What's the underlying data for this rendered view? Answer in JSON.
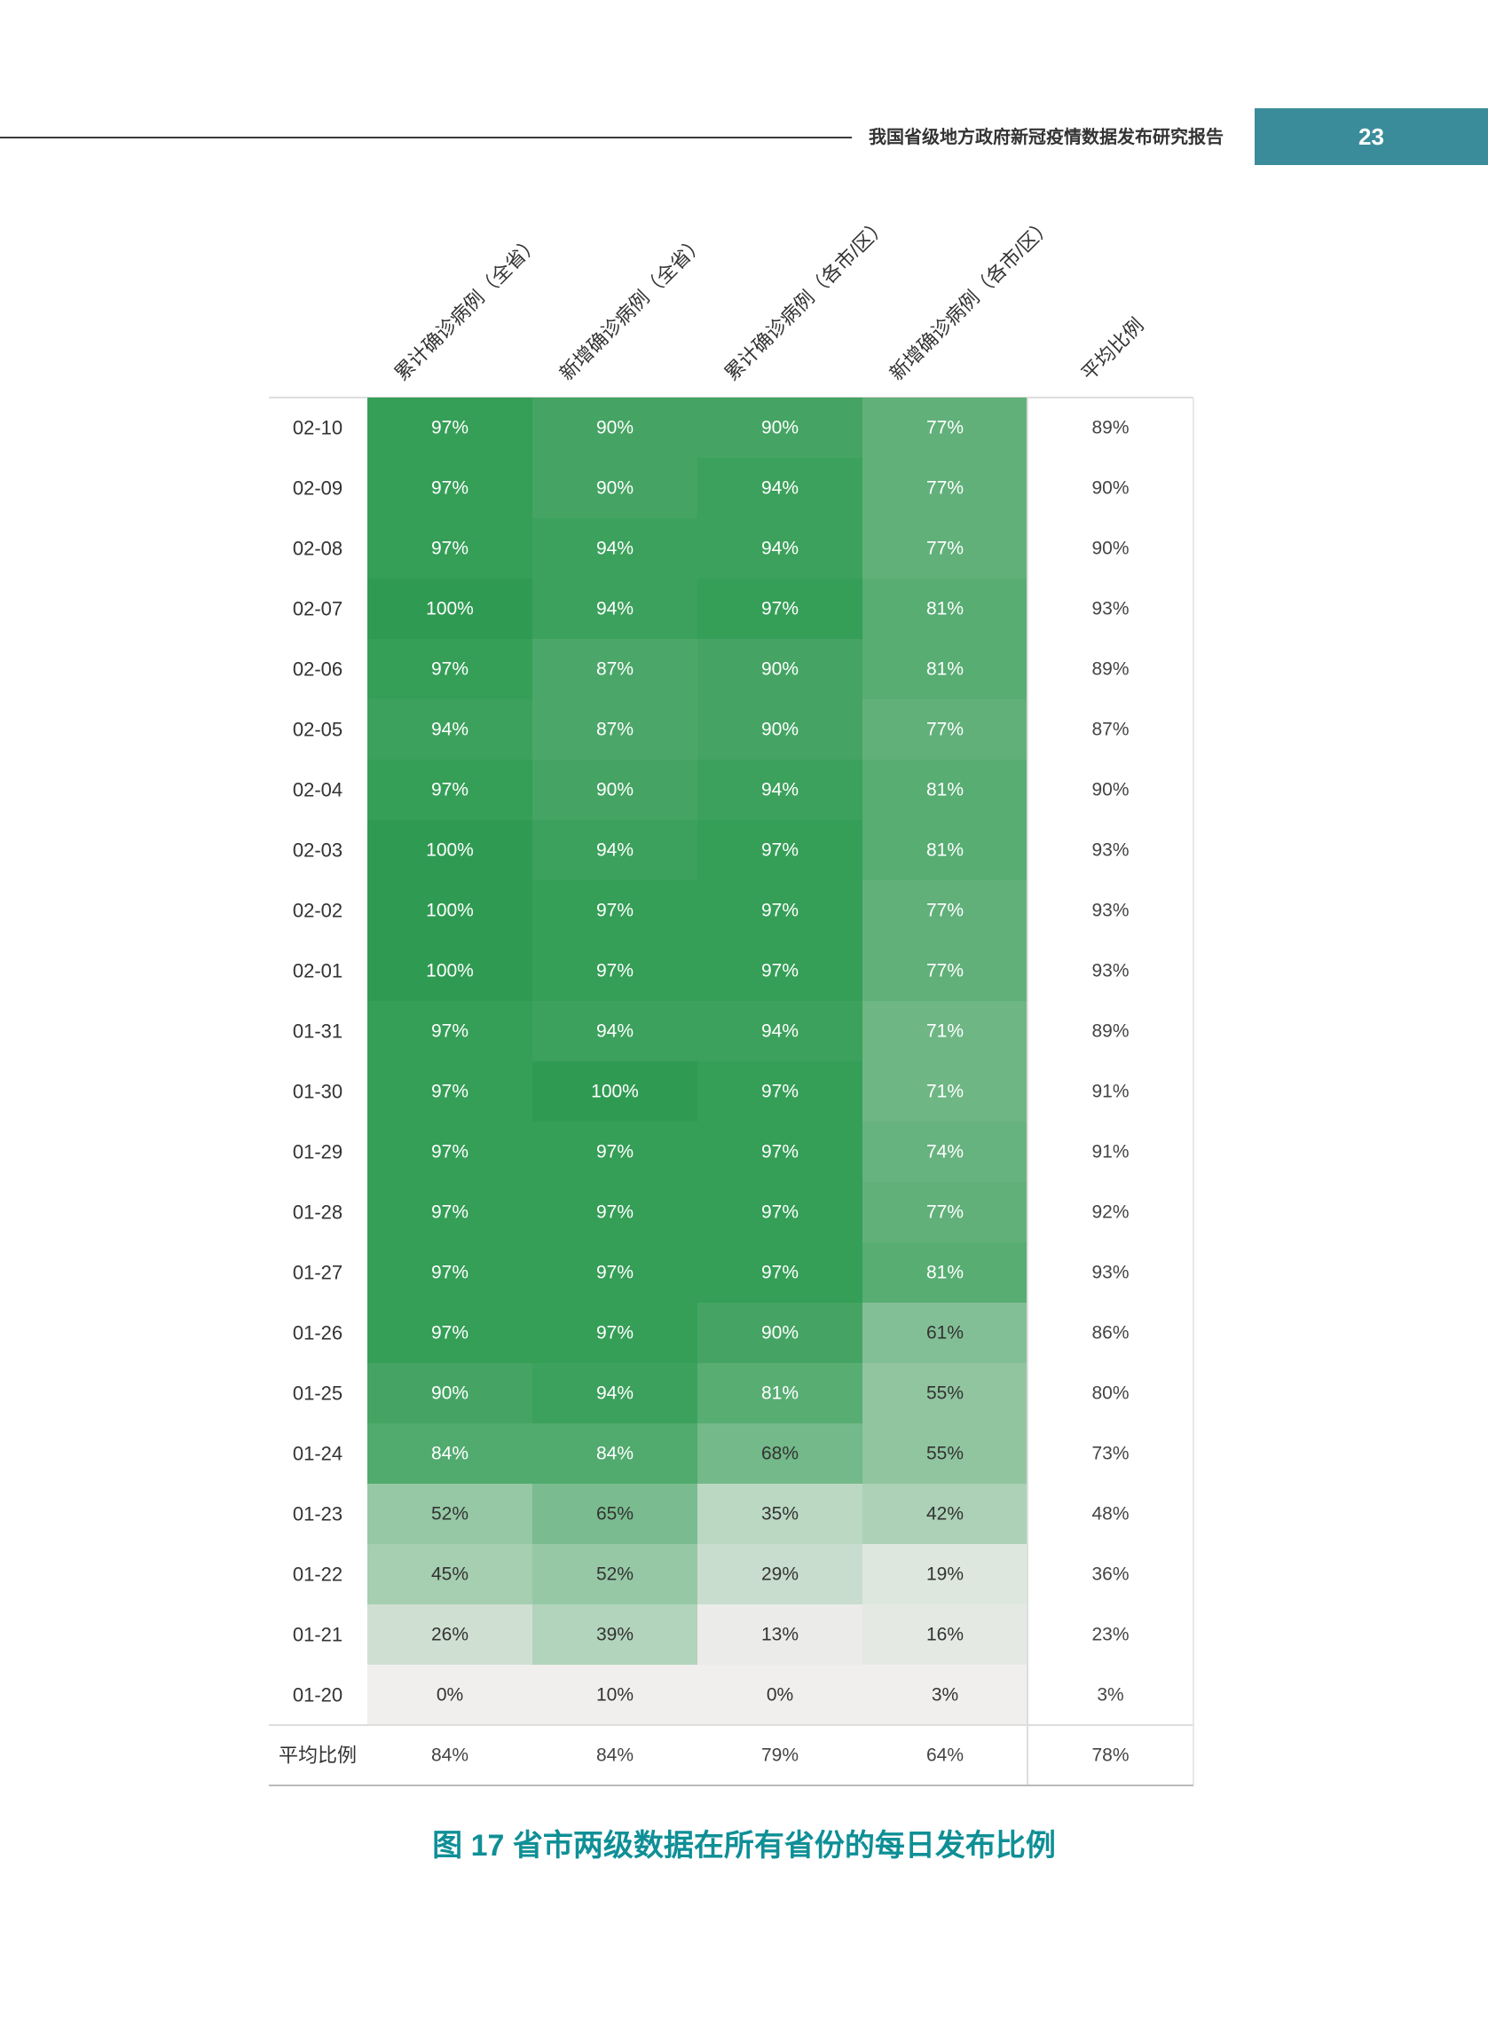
{
  "header": {
    "title": "我国省级地方政府新冠疫情数据发布研究报告",
    "page_number": "23"
  },
  "caption": "图 17 省市两级数据在所有省份的每日发布比例",
  "chart_data": {
    "type": "heatmap",
    "columns": [
      "累计确诊病例（全省）",
      "新增确诊病例（全省）",
      "累计确诊病例（各市/区）",
      "新增确诊病例（各市/区）"
    ],
    "average_column_label": "平均比例",
    "average_row_label": "平均比例",
    "rows": [
      {
        "date": "02-10",
        "values": [
          97,
          90,
          90,
          77
        ],
        "avg": 89
      },
      {
        "date": "02-09",
        "values": [
          97,
          90,
          94,
          77
        ],
        "avg": 90
      },
      {
        "date": "02-08",
        "values": [
          97,
          94,
          94,
          77
        ],
        "avg": 90
      },
      {
        "date": "02-07",
        "values": [
          100,
          94,
          97,
          81
        ],
        "avg": 93
      },
      {
        "date": "02-06",
        "values": [
          97,
          87,
          90,
          81
        ],
        "avg": 89
      },
      {
        "date": "02-05",
        "values": [
          94,
          87,
          90,
          77
        ],
        "avg": 87
      },
      {
        "date": "02-04",
        "values": [
          97,
          90,
          94,
          81
        ],
        "avg": 90
      },
      {
        "date": "02-03",
        "values": [
          100,
          94,
          97,
          81
        ],
        "avg": 93
      },
      {
        "date": "02-02",
        "values": [
          100,
          97,
          97,
          77
        ],
        "avg": 93
      },
      {
        "date": "02-01",
        "values": [
          100,
          97,
          97,
          77
        ],
        "avg": 93
      },
      {
        "date": "01-31",
        "values": [
          97,
          94,
          94,
          71
        ],
        "avg": 89
      },
      {
        "date": "01-30",
        "values": [
          97,
          100,
          97,
          71
        ],
        "avg": 91
      },
      {
        "date": "01-29",
        "values": [
          97,
          97,
          97,
          74
        ],
        "avg": 91
      },
      {
        "date": "01-28",
        "values": [
          97,
          97,
          97,
          77
        ],
        "avg": 92
      },
      {
        "date": "01-27",
        "values": [
          97,
          97,
          97,
          81
        ],
        "avg": 93
      },
      {
        "date": "01-26",
        "values": [
          97,
          97,
          90,
          61
        ],
        "avg": 86
      },
      {
        "date": "01-25",
        "values": [
          90,
          94,
          81,
          55
        ],
        "avg": 80
      },
      {
        "date": "01-24",
        "values": [
          84,
          84,
          68,
          55
        ],
        "avg": 73
      },
      {
        "date": "01-23",
        "values": [
          52,
          65,
          35,
          42
        ],
        "avg": 48
      },
      {
        "date": "01-22",
        "values": [
          45,
          52,
          29,
          19
        ],
        "avg": 36
      },
      {
        "date": "01-21",
        "values": [
          26,
          39,
          13,
          16
        ],
        "avg": 23
      },
      {
        "date": "01-20",
        "values": [
          0,
          10,
          0,
          3
        ],
        "avg": 3
      }
    ],
    "column_averages": [
      84,
      84,
      79,
      64
    ],
    "overall_average": 78,
    "unit": "%",
    "colors": {
      "high": "#2f9b52",
      "low": "#f1efee",
      "text_light": "#ffffff",
      "text_dark": "#333333",
      "grid": "#dddddd"
    }
  }
}
